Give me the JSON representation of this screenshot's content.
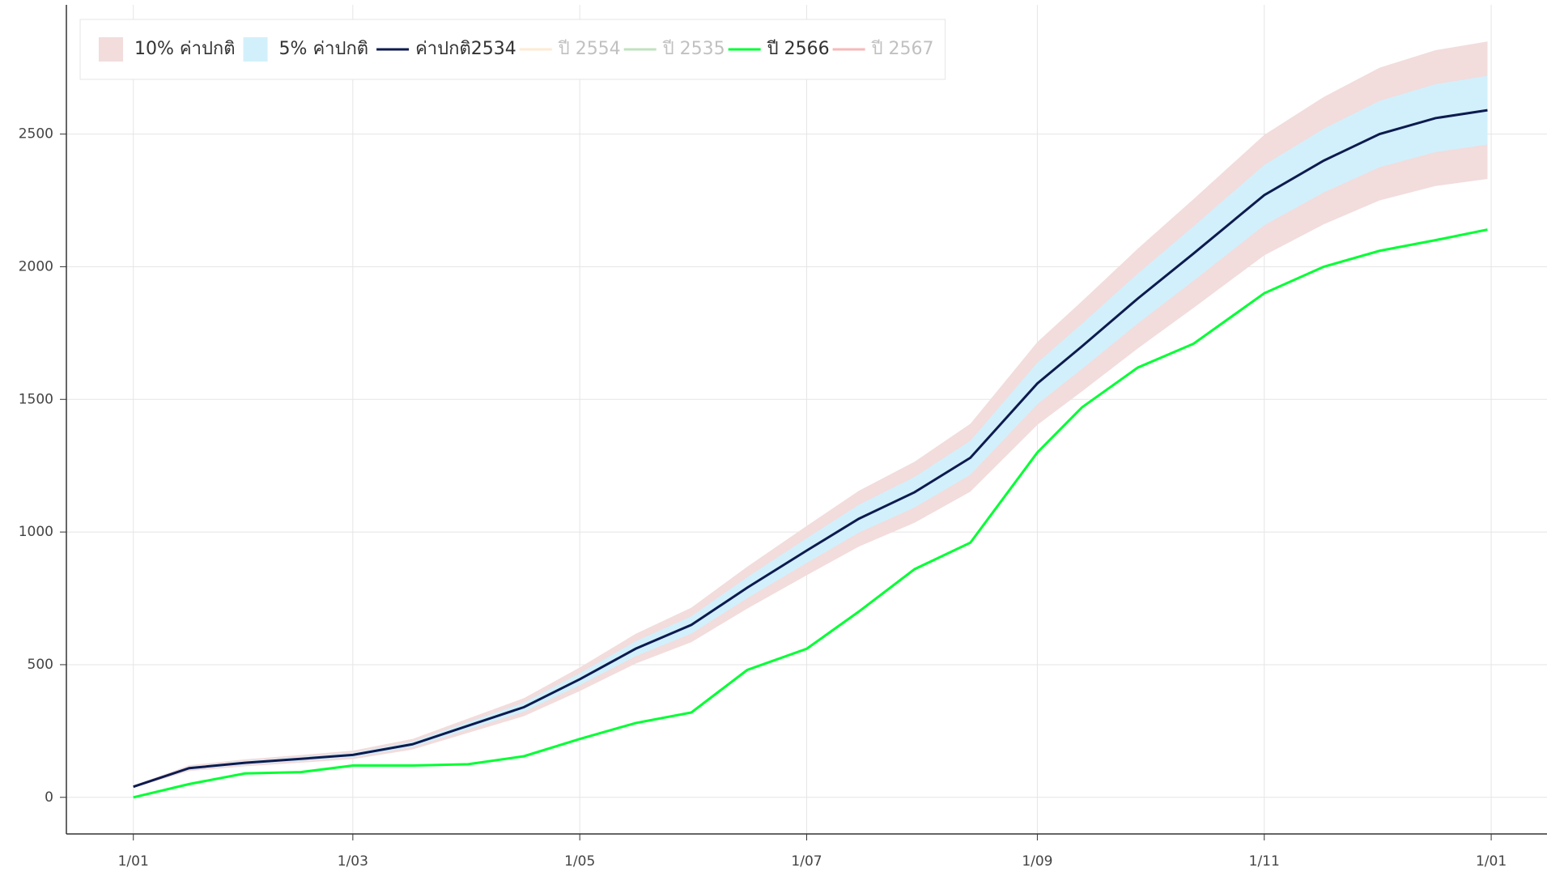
{
  "chart_data": {
    "type": "line",
    "x": [
      0,
      15,
      30,
      45,
      59,
      75,
      90,
      105,
      120,
      135,
      150,
      165,
      181,
      195,
      210,
      225,
      243,
      255,
      270,
      285,
      304,
      320,
      335,
      350,
      364
    ],
    "xlim": [
      -18,
      380
    ],
    "xticks": [
      {
        "value": 0,
        "label": "1/01"
      },
      {
        "value": 59,
        "label": "1/03"
      },
      {
        "value": 120,
        "label": "1/05"
      },
      {
        "value": 181,
        "label": "1/07"
      },
      {
        "value": 243,
        "label": "1/09"
      },
      {
        "value": 304,
        "label": "1/11"
      },
      {
        "value": 365,
        "label": "1/01"
      }
    ],
    "ylim": [
      -138,
      2987
    ],
    "yticks": [
      0,
      500,
      1000,
      1500,
      2000,
      2500
    ],
    "grid": true,
    "legend": "top-left",
    "bands": [
      {
        "name": "10% ค่าปกติ",
        "color": "#f2dcdc",
        "lower": [
          36,
          99,
          117,
          130.5,
          144,
          180,
          243,
          306,
          400.5,
          504,
          585,
          711,
          837,
          945,
          1035,
          1152,
          1404,
          1530,
          1692,
          1845,
          2043,
          2160,
          2250,
          2304,
          2331
        ],
        "upper": [
          44,
          121,
          143,
          159.5,
          176,
          220,
          297,
          374,
          489.5,
          616,
          715,
          869,
          1023,
          1155,
          1265,
          1408,
          1716,
          1870,
          2068,
          2255,
          2497,
          2640,
          2750,
          2816,
          2849
        ]
      },
      {
        "name": "5% ค่าปกติ",
        "color": "#d2f0fb",
        "lower": [
          38,
          104.5,
          123.5,
          137.75,
          152,
          190,
          256.5,
          323,
          422.75,
          532,
          617.5,
          750.5,
          883.5,
          997.5,
          1092.5,
          1216,
          1482,
          1615,
          1786,
          1947.5,
          2156.5,
          2280,
          2375,
          2432,
          2460.5
        ],
        "upper": [
          42,
          115.5,
          136.5,
          152.25,
          168,
          210,
          283.5,
          357,
          467.25,
          588,
          682.5,
          829.5,
          976.5,
          1102.5,
          1207.5,
          1344,
          1638,
          1785,
          1974,
          2152.5,
          2383.5,
          2520,
          2625,
          2688,
          2719.5
        ]
      }
    ],
    "series": [
      {
        "name": "ค่าปกติ2534",
        "color": "#0d1b4f",
        "values": [
          40,
          110,
          130,
          145,
          160,
          200,
          270,
          340,
          445,
          560,
          650,
          790,
          930,
          1050,
          1150,
          1280,
          1560,
          1700,
          1880,
          2050,
          2270,
          2400,
          2500,
          2560,
          2590
        ]
      },
      {
        "name": "ปี 2554",
        "color": "#fdbf6f",
        "muted": true
      },
      {
        "name": "ปี 2535",
        "color": "#33a02c",
        "muted": true
      },
      {
        "name": "ปี 2566",
        "color": "#00ff33",
        "values": [
          0,
          50,
          90,
          95,
          120,
          120,
          125,
          155,
          220,
          280,
          320,
          480,
          560,
          700,
          860,
          960,
          1300,
          1470,
          1620,
          1710,
          1900,
          2000,
          2060,
          2100,
          2140
        ]
      },
      {
        "name": "ปี 2567",
        "color": "#e31a1c",
        "muted": true
      }
    ]
  }
}
